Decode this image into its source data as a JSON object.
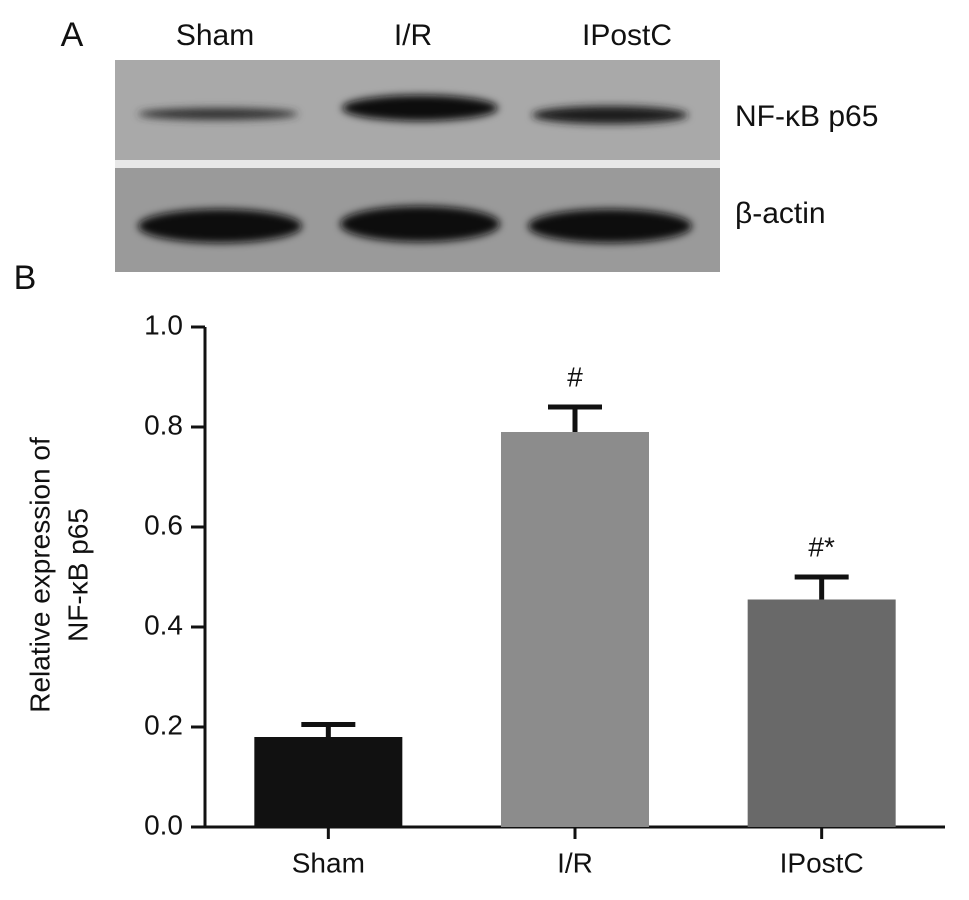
{
  "blot": {
    "panel_label": "A",
    "lanes": [
      "Sham",
      "I/R",
      "IPostC"
    ],
    "bands": [
      "NF-κB p65",
      "β-actin"
    ]
  },
  "chart_data": {
    "type": "bar",
    "panel_label": "B",
    "y_label": [
      "Relative expression of",
      "NF-κB p65"
    ],
    "categories": [
      "Sham",
      "I/R",
      "IPostC"
    ],
    "values": [
      0.18,
      0.79,
      0.455
    ],
    "errors": [
      0.025,
      0.05,
      0.045
    ],
    "annotations": [
      null,
      "#",
      "#*"
    ],
    "colors": [
      "#111111",
      "#8c8c8c",
      "#696969"
    ],
    "ylim": [
      0,
      1.0
    ],
    "yticks": [
      {
        "value": 0,
        "label": "0.0"
      },
      0.2,
      0.4,
      0.6,
      0.8,
      {
        "value": 1.0,
        "label": "1.0"
      }
    ],
    "grid": false
  }
}
